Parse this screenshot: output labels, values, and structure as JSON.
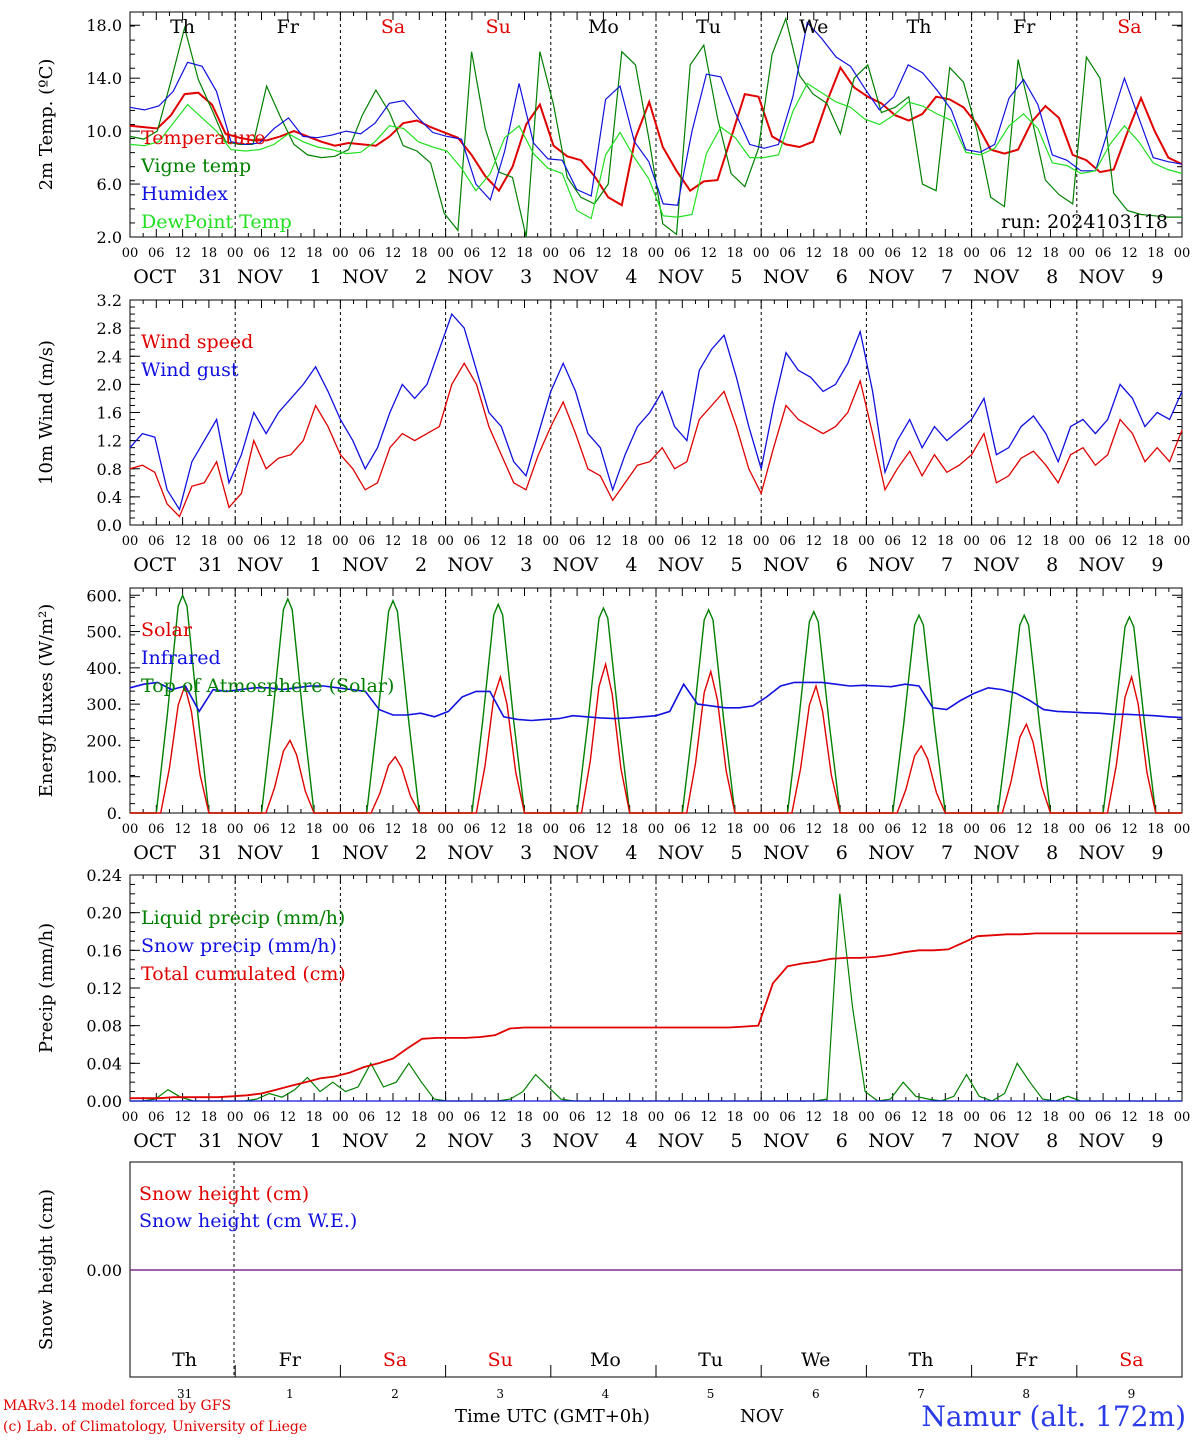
{
  "run_label": "run: 2024103118",
  "days": [
    {
      "abbr": "Th",
      "weekend": false,
      "month": "OCT",
      "date": "31"
    },
    {
      "abbr": "Fr",
      "weekend": false,
      "month": "NOV",
      "date": "1"
    },
    {
      "abbr": "Sa",
      "weekend": true,
      "month": "NOV",
      "date": "2"
    },
    {
      "abbr": "Su",
      "weekend": true,
      "month": "NOV",
      "date": "3"
    },
    {
      "abbr": "Mo",
      "weekend": false,
      "month": "NOV",
      "date": "4"
    },
    {
      "abbr": "Tu",
      "weekend": false,
      "month": "NOV",
      "date": "5"
    },
    {
      "abbr": "We",
      "weekend": false,
      "month": "NOV",
      "date": "6"
    },
    {
      "abbr": "Th",
      "weekend": false,
      "month": "NOV",
      "date": "7"
    },
    {
      "abbr": "Fr",
      "weekend": false,
      "month": "NOV",
      "date": "8"
    },
    {
      "abbr": "Sa",
      "weekend": true,
      "month": "NOV",
      "date": "9"
    }
  ],
  "hour_ticks": [
    "00",
    "06",
    "12",
    "18"
  ],
  "colors": {
    "red": "#e00000",
    "green": "#008000",
    "blue": "#1010e0",
    "lightgreen": "#20e020",
    "black": "#000000",
    "weekend": "#e00000",
    "snow": "#7a2e8e"
  },
  "footer": {
    "credit_line1": "MARv3.14 model forced by GFS",
    "credit_line2": "(c) Lab. of Climatology, University of Liege",
    "xaxis_title": "Time UTC (GMT+0h)",
    "month": "NOV",
    "station": "Namur (alt. 172m)"
  },
  "chart_data": [
    {
      "type": "line",
      "ylabel": "2m Temp. (ºC)",
      "ylim": [
        2,
        19
      ],
      "yticks": [
        "2.0",
        "6.0",
        "10.0",
        "14.0",
        "18.0"
      ],
      "x_unit": "hours since Oct 31 00 UTC (3-hourly)",
      "legend": "top-left",
      "series": [
        {
          "name": "Temperature",
          "color": "red",
          "values": [
            10.4,
            10.3,
            10.2,
            11.2,
            12.8,
            12.9,
            12.0,
            9.8,
            9.5,
            9.3,
            9.3,
            9.6,
            10.0,
            9.6,
            9.2,
            8.9,
            9.1,
            9.0,
            8.9,
            9.6,
            10.6,
            10.8,
            10.3,
            9.9,
            9.5,
            8.2,
            6.6,
            5.5,
            7.3,
            10.5,
            12.0,
            8.9,
            8.1,
            7.8,
            6.6,
            5.0,
            4.4,
            9.5,
            12.2,
            8.8,
            7.0,
            5.5,
            6.2,
            6.3,
            9.5,
            12.8,
            12.6,
            9.6,
            9.0,
            8.8,
            9.2,
            12.2,
            14.8,
            13.3,
            12.6,
            12.1,
            11.2,
            10.8,
            11.3,
            12.6,
            12.4,
            11.8,
            10.5,
            8.6,
            8.3,
            8.6,
            10.7,
            11.9,
            11.0,
            8.2,
            7.8,
            6.9,
            7.1,
            9.9,
            12.5,
            10.0,
            8.0,
            7.5
          ]
        },
        {
          "name": "Vigne temp",
          "color": "green",
          "values": [
            9.6,
            9.4,
            10.0,
            13.8,
            17.8,
            13.9,
            11.6,
            9.2,
            9.0,
            9.0,
            13.4,
            11.1,
            9.0,
            8.2,
            8.0,
            8.1,
            8.6,
            11.2,
            13.1,
            11.4,
            8.9,
            8.5,
            7.6,
            3.8,
            2.5,
            16.0,
            10.2,
            6.9,
            6.5,
            1.8,
            16.0,
            12.0,
            6.5,
            5.0,
            4.5,
            6.0,
            16.0,
            15.0,
            9.3,
            3.0,
            2.2,
            15.0,
            16.5,
            11.0,
            6.8,
            5.8,
            8.7,
            15.8,
            18.5,
            14.2,
            12.8,
            12.1,
            9.8,
            14.0,
            15.0,
            11.4,
            11.8,
            12.6,
            6.0,
            5.5,
            14.8,
            13.7,
            10.0,
            5.0,
            4.3,
            15.4,
            11.0,
            6.3,
            5.2,
            4.5,
            15.6,
            14.0,
            5.3,
            4.0,
            3.7,
            3.6,
            3.5,
            3.5
          ]
        },
        {
          "name": "Humidex",
          "color": "blue",
          "values": [
            11.8,
            11.6,
            11.9,
            13.0,
            15.2,
            14.9,
            13.0,
            9.2,
            9.0,
            9.1,
            10.2,
            11.0,
            9.6,
            9.5,
            9.7,
            10.0,
            9.8,
            10.6,
            12.1,
            12.3,
            11.0,
            9.9,
            9.6,
            9.4,
            6.0,
            4.8,
            8.5,
            13.6,
            9.1,
            7.9,
            7.8,
            5.6,
            5.1,
            12.4,
            13.4,
            9.2,
            7.7,
            4.5,
            4.4,
            10.0,
            14.3,
            14.1,
            11.4,
            9.0,
            8.7,
            9.0,
            12.6,
            18.2,
            17.0,
            15.6,
            14.9,
            13.2,
            11.6,
            12.6,
            15.0,
            14.4,
            13.1,
            11.6,
            8.6,
            8.4,
            9.0,
            12.5,
            13.9,
            12.0,
            8.2,
            7.8,
            7.0,
            7.0,
            10.5,
            14.0,
            11.0,
            8.0,
            7.7,
            7.5
          ]
        },
        {
          "name": "DewPoint Temp",
          "color": "lightgreen",
          "values": [
            9.0,
            8.9,
            9.2,
            10.6,
            12.0,
            11.0,
            10.0,
            8.6,
            8.5,
            8.6,
            9.0,
            9.8,
            9.2,
            8.8,
            8.6,
            8.3,
            8.4,
            9.2,
            10.4,
            10.2,
            9.2,
            8.8,
            8.5,
            7.2,
            5.5,
            6.8,
            9.5,
            10.4,
            8.3,
            7.2,
            6.8,
            4.0,
            3.4,
            8.2,
            9.9,
            8.0,
            6.4,
            3.6,
            3.5,
            3.7,
            8.3,
            10.3,
            9.5,
            8.0,
            8.0,
            8.2,
            11.5,
            13.6,
            12.9,
            12.2,
            11.8,
            10.9,
            10.5,
            11.2,
            12.2,
            11.9,
            11.3,
            10.8,
            8.4,
            8.2,
            8.7,
            10.4,
            11.3,
            10.2,
            7.6,
            7.4,
            6.8,
            7.0,
            9.0,
            10.4,
            9.2,
            7.6,
            7.1,
            6.8
          ]
        }
      ]
    },
    {
      "type": "line",
      "ylabel": "10m Wind (m/s)",
      "ylim": [
        0,
        3.2
      ],
      "yticks": [
        "0.0",
        "0.4",
        "0.8",
        "1.2",
        "1.6",
        "2.0",
        "2.4",
        "2.8",
        "3.2"
      ],
      "legend": "top-left",
      "series": [
        {
          "name": "Wind speed",
          "color": "red",
          "values": [
            0.8,
            0.85,
            0.75,
            0.3,
            0.12,
            0.55,
            0.6,
            0.9,
            0.25,
            0.45,
            1.2,
            0.8,
            0.95,
            1.0,
            1.2,
            1.7,
            1.4,
            1.0,
            0.8,
            0.5,
            0.6,
            1.1,
            1.3,
            1.2,
            1.3,
            1.4,
            2.0,
            2.3,
            2.0,
            1.4,
            1.0,
            0.6,
            0.5,
            1.0,
            1.4,
            1.75,
            1.3,
            0.8,
            0.7,
            0.35,
            0.6,
            0.85,
            0.9,
            1.1,
            0.8,
            0.9,
            1.5,
            1.7,
            1.9,
            1.4,
            0.8,
            0.45,
            1.1,
            1.7,
            1.5,
            1.4,
            1.3,
            1.4,
            1.6,
            2.05,
            1.3,
            0.5,
            0.8,
            1.05,
            0.7,
            1.0,
            0.75,
            0.85,
            1.0,
            1.3,
            0.6,
            0.7,
            0.95,
            1.05,
            0.85,
            0.6,
            1.0,
            1.1,
            0.85,
            1.0,
            1.5,
            1.3,
            0.9,
            1.1,
            0.9,
            1.35
          ]
        },
        {
          "name": "Wind gust",
          "color": "blue",
          "values": [
            1.1,
            1.3,
            1.25,
            0.5,
            0.22,
            0.9,
            1.2,
            1.5,
            0.6,
            1.0,
            1.6,
            1.3,
            1.6,
            1.8,
            2.0,
            2.25,
            1.9,
            1.5,
            1.2,
            0.8,
            1.1,
            1.6,
            2.0,
            1.8,
            2.0,
            2.5,
            3.0,
            2.8,
            2.2,
            1.6,
            1.4,
            0.9,
            0.7,
            1.3,
            1.9,
            2.3,
            1.9,
            1.3,
            1.1,
            0.5,
            1.0,
            1.4,
            1.6,
            1.9,
            1.4,
            1.2,
            2.2,
            2.5,
            2.7,
            2.1,
            1.4,
            0.8,
            1.7,
            2.45,
            2.2,
            2.1,
            1.9,
            2.0,
            2.3,
            2.75,
            1.9,
            0.75,
            1.2,
            1.5,
            1.1,
            1.4,
            1.2,
            1.35,
            1.5,
            1.8,
            1.0,
            1.1,
            1.4,
            1.55,
            1.3,
            0.9,
            1.4,
            1.5,
            1.3,
            1.5,
            2.0,
            1.8,
            1.4,
            1.6,
            1.5,
            1.9
          ]
        }
      ]
    },
    {
      "type": "line",
      "ylabel": "Energy fluxes (W/m²)",
      "ylim": [
        0,
        620
      ],
      "yticks": [
        "0.",
        "100.",
        "200.",
        "300.",
        "400.",
        "500.",
        "600."
      ],
      "legend": "top-left",
      "series": [
        {
          "name": "Solar",
          "color": "red",
          "peaks": [
            350,
            200,
            155,
            375,
            410,
            390,
            350,
            185,
            245,
            375
          ]
        },
        {
          "name": "Infrared",
          "color": "blue",
          "values": [
            345,
            355,
            360,
            340,
            350,
            280,
            340,
            335,
            340,
            345,
            345,
            340,
            345,
            350,
            350,
            345,
            340,
            335,
            285,
            270,
            270,
            275,
            265,
            280,
            320,
            335,
            335,
            265,
            258,
            255,
            258,
            260,
            268,
            265,
            262,
            260,
            262,
            265,
            268,
            280,
            355,
            300,
            295,
            290,
            290,
            295,
            320,
            350,
            360,
            360,
            360,
            355,
            350,
            352,
            350,
            348,
            355,
            350,
            290,
            285,
            310,
            330,
            345,
            340,
            330,
            310,
            285,
            280,
            278,
            276,
            275,
            272,
            272,
            270,
            268,
            265,
            263
          ]
        },
        {
          "name": "Top of Atmosphere (Solar)",
          "color": "green",
          "peaks": [
            600,
            590,
            585,
            575,
            565,
            560,
            555,
            545,
            545,
            540
          ]
        }
      ]
    },
    {
      "type": "line",
      "ylabel": "Precip (mm/h)",
      "ylim": [
        0,
        0.24
      ],
      "yticks": [
        "0.00",
        "0.04",
        "0.08",
        "0.12",
        "0.16",
        "0.20",
        "0.24"
      ],
      "legend": "top-left",
      "series": [
        {
          "name": "Liquid precip (mm/h)",
          "color": "green",
          "values": [
            0,
            0,
            0.002,
            0.012,
            0.004,
            0,
            0,
            0,
            0,
            0,
            0.002,
            0.008,
            0.004,
            0.012,
            0.025,
            0.01,
            0.02,
            0.01,
            0.015,
            0.04,
            0.015,
            0.02,
            0.04,
            0.02,
            0.002,
            0,
            0,
            0,
            0,
            0,
            0.002,
            0.01,
            0.028,
            0.015,
            0.002,
            0,
            0,
            0,
            0,
            0,
            0,
            0,
            0,
            0,
            0,
            0,
            0,
            0,
            0,
            0,
            0,
            0,
            0,
            0,
            0,
            0.002,
            0.22,
            0.1,
            0.01,
            0,
            0.002,
            0.02,
            0.005,
            0.002,
            0,
            0.005,
            0.028,
            0.005,
            0,
            0.008,
            0.04,
            0.02,
            0.002,
            0,
            0.005,
            0,
            0,
            0,
            0,
            0,
            0,
            0,
            0,
            0
          ]
        },
        {
          "name": "Snow precip (mm/h)",
          "color": "blue",
          "values": [
            0,
            0,
            0,
            0,
            0,
            0,
            0,
            0,
            0,
            0,
            0,
            0,
            0,
            0,
            0,
            0,
            0,
            0,
            0,
            0,
            0,
            0,
            0,
            0,
            0,
            0,
            0,
            0,
            0,
            0,
            0,
            0,
            0,
            0,
            0,
            0,
            0,
            0,
            0,
            0,
            0,
            0,
            0,
            0,
            0,
            0,
            0,
            0,
            0,
            0,
            0,
            0,
            0,
            0,
            0,
            0,
            0,
            0,
            0,
            0,
            0,
            0,
            0,
            0,
            0,
            0,
            0,
            0,
            0,
            0,
            0,
            0,
            0,
            0,
            0,
            0,
            0,
            0,
            0,
            0
          ]
        },
        {
          "name": "Total cumulated (cm)",
          "color": "red",
          "values": [
            0.003,
            0.003,
            0.003,
            0.004,
            0.004,
            0.004,
            0.004,
            0.005,
            0.006,
            0.008,
            0.012,
            0.016,
            0.02,
            0.024,
            0.026,
            0.03,
            0.036,
            0.04,
            0.045,
            0.056,
            0.066,
            0.067,
            0.067,
            0.067,
            0.068,
            0.07,
            0.077,
            0.078,
            0.078,
            0.078,
            0.078,
            0.078,
            0.078,
            0.078,
            0.078,
            0.078,
            0.078,
            0.078,
            0.078,
            0.078,
            0.078,
            0.078,
            0.079,
            0.08,
            0.125,
            0.143,
            0.146,
            0.148,
            0.151,
            0.152,
            0.152,
            0.153,
            0.155,
            0.158,
            0.16,
            0.16,
            0.161,
            0.168,
            0.175,
            0.176,
            0.177,
            0.177,
            0.178,
            0.178,
            0.178,
            0.178,
            0.178,
            0.178,
            0.178,
            0.178,
            0.178,
            0.178,
            0.178
          ]
        }
      ]
    },
    {
      "type": "line",
      "ylabel": "Snow height (cm)",
      "ytick": "0.00",
      "legend": "top-left",
      "series": [
        {
          "name": "Snow height (cm)",
          "color": "red",
          "values": [
            0,
            0
          ]
        },
        {
          "name": "Snow height (cm W.E.)",
          "color": "blue",
          "values": [
            0,
            0
          ]
        }
      ]
    }
  ]
}
